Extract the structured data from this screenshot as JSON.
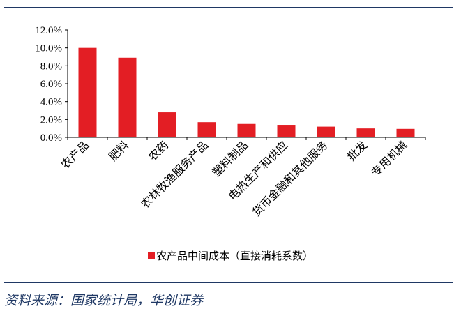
{
  "chart_data": {
    "type": "bar",
    "categories": [
      "农产品",
      "肥料",
      "农药",
      "农林牧渔服务产品",
      "塑料制品",
      "电热生产和供应",
      "货币金融和其他服务",
      "批发",
      "专用机械"
    ],
    "series": [
      {
        "name": "农产品中间成本（直接消耗系数）",
        "values": [
          10.0,
          8.9,
          2.8,
          1.7,
          1.5,
          1.4,
          1.2,
          1.0,
          0.95
        ]
      }
    ],
    "ylim": [
      0,
      12
    ],
    "yticks": [
      0,
      2,
      4,
      6,
      8,
      10,
      12
    ],
    "ytick_labels": [
      "0.0%",
      "2.0%",
      "4.0%",
      "6.0%",
      "8.0%",
      "10.0%",
      "12.0%"
    ],
    "bar_color": "#e31e24",
    "grid": false,
    "legend_position": "bottom"
  },
  "footer": {
    "source": "资料来源：国家统计局，华创证券"
  }
}
